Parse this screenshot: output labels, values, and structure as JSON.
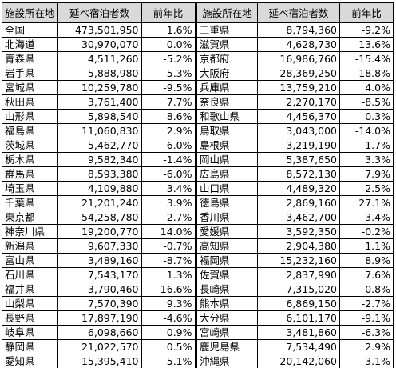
{
  "tables": [
    {
      "headers": [
        "施設所在地",
        "延べ宿泊者数",
        "前年比"
      ],
      "rows": [
        [
          "全国",
          "473,501,950",
          "1.6%"
        ],
        [
          "北海道",
          "30,970,070",
          "0.0%"
        ],
        [
          "青森県",
          "4,511,260",
          "-5.2%"
        ],
        [
          "岩手県",
          "5,888,980",
          "5.3%"
        ],
        [
          "宮城県",
          "10,259,780",
          "-9.5%"
        ],
        [
          "秋田県",
          "3,761,400",
          "7.7%"
        ],
        [
          "山形県",
          "5,898,540",
          "8.6%"
        ],
        [
          "福島県",
          "11,060,830",
          "2.9%"
        ],
        [
          "茨城県",
          "5,462,770",
          "6.0%"
        ],
        [
          "栃木県",
          "9,582,340",
          "-1.4%"
        ],
        [
          "群馬県",
          "8,593,380",
          "-6.0%"
        ],
        [
          "埼玉県",
          "4,109,880",
          "3.4%"
        ],
        [
          "千葉県",
          "21,201,240",
          "3.9%"
        ],
        [
          "東京都",
          "54,258,780",
          "2.7%"
        ],
        [
          "神奈川県",
          "19,200,770",
          "14.0%"
        ],
        [
          "新潟県",
          "9,607,330",
          "-0.7%"
        ],
        [
          "富山県",
          "3,489,160",
          "-8.7%"
        ],
        [
          "石川県",
          "7,543,170",
          "1.3%"
        ],
        [
          "福井県",
          "3,790,460",
          "16.6%"
        ],
        [
          "山梨県",
          "7,570,390",
          "9.3%"
        ],
        [
          "長野県",
          "17,897,190",
          "-4.6%"
        ],
        [
          "岐阜県",
          "6,098,660",
          "0.9%"
        ],
        [
          "静岡県",
          "21,022,570",
          "0.5%"
        ],
        [
          "愛知県",
          "15,395,410",
          "5.1%"
        ]
      ]
    },
    {
      "headers": [
        "施設所在地",
        "延べ宿泊者数",
        "前年比"
      ],
      "rows": [
        [
          "三重県",
          "8,794,360",
          "-9.2%"
        ],
        [
          "滋賀県",
          "4,628,730",
          "13.6%"
        ],
        [
          "京都府",
          "16,986,760",
          "-15.4%"
        ],
        [
          "大阪府",
          "28,369,250",
          "18.8%"
        ],
        [
          "兵庫県",
          "13,759,210",
          "4.0%"
        ],
        [
          "奈良県",
          "2,270,170",
          "-8.5%"
        ],
        [
          "和歌山県",
          "4,456,370",
          "0.3%"
        ],
        [
          "鳥取県",
          "3,043,000",
          "-14.0%"
        ],
        [
          "島根県",
          "3,219,190",
          "-1.7%"
        ],
        [
          "岡山県",
          "5,387,650",
          "3.3%"
        ],
        [
          "広島県",
          "8,572,130",
          "7.9%"
        ],
        [
          "山口県",
          "4,489,320",
          "2.5%"
        ],
        [
          "徳島県",
          "2,869,160",
          "27.1%"
        ],
        [
          "香川県",
          "3,462,700",
          "-3.4%"
        ],
        [
          "愛媛県",
          "3,592,350",
          "-0.2%"
        ],
        [
          "高知県",
          "2,904,380",
          "1.1%"
        ],
        [
          "福岡県",
          "15,232,160",
          "8.9%"
        ],
        [
          "佐賀県",
          "2,837,990",
          "7.6%"
        ],
        [
          "長崎県",
          "7,315,020",
          "0.8%"
        ],
        [
          "熊本県",
          "6,869,150",
          "-2.7%"
        ],
        [
          "大分県",
          "6,101,170",
          "-9.1%"
        ],
        [
          "宮崎県",
          "3,481,860",
          "-6.3%"
        ],
        [
          "鹿児島県",
          "7,534,490",
          "2.9%"
        ],
        [
          "沖縄県",
          "20,142,060",
          "-3.1%"
        ]
      ]
    }
  ]
}
